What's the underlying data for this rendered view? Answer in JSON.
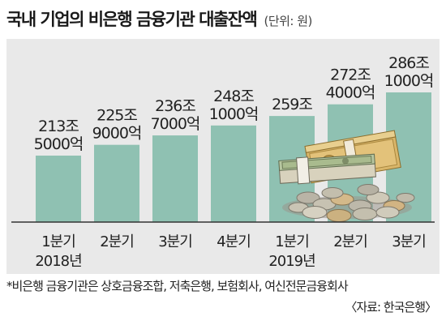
{
  "title": "국내 기업의 비은행 금융기관 대출잔액",
  "unit": "(단위: 원)",
  "footnote": "*비은행 금융기관은 상호금융조합, 저축은행, 보험회사, 여신전문금융회사",
  "source": "〈자료: 한국은행〉",
  "chart_data": {
    "type": "bar",
    "categories": [
      {
        "line1": "1분기",
        "line2": "2018년"
      },
      {
        "line1": "2분기",
        "line2": ""
      },
      {
        "line1": "3분기",
        "line2": ""
      },
      {
        "line1": "4분기",
        "line2": ""
      },
      {
        "line1": "1분기",
        "line2": "2019년"
      },
      {
        "line1": "2분기",
        "line2": ""
      },
      {
        "line1": "3분기",
        "line2": ""
      }
    ],
    "values": [
      2135000,
      2259000,
      2367000,
      2481000,
      2590000,
      2724000,
      2861000
    ],
    "value_unit": "억원",
    "labels": [
      {
        "line1": "213조",
        "line2": "5000억"
      },
      {
        "line1": "225조",
        "line2": "9000억"
      },
      {
        "line1": "236조",
        "line2": "7000억"
      },
      {
        "line1": "248조",
        "line2": "1000억"
      },
      {
        "line1": "259조",
        "line2": ""
      },
      {
        "line1": "272조",
        "line2": "4000억"
      },
      {
        "line1": "286조",
        "line2": "1000억"
      }
    ],
    "bar_color": "#8fc1b2",
    "axis_color": "#333333",
    "grid": false,
    "legend": "none"
  },
  "illustration": "money-bills-and-coins-icon"
}
